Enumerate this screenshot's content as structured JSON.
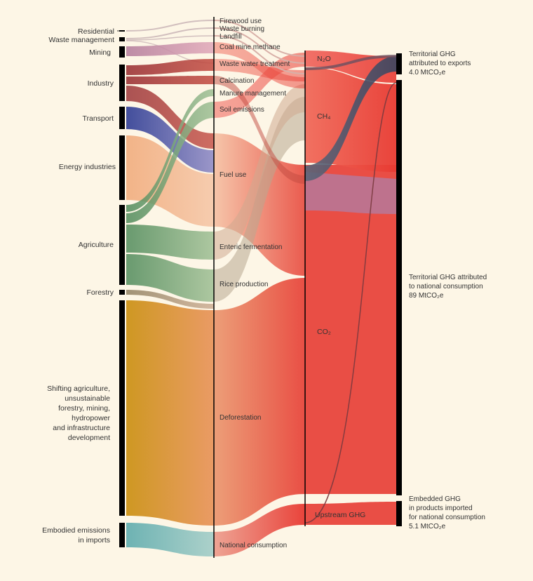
{
  "colors": {
    "background": "#fdf6e6",
    "residential": "#c7b1b4",
    "waste": "#c7b1b4",
    "mining": "#b27a9a",
    "industry": "#962a2e",
    "transport": "#22318f",
    "energy": "#f1ac7d",
    "agriculture": "#4f8a5a",
    "forestry": "#8a7a5a",
    "shifting": "#cc9318",
    "imports": "#66afb0",
    "gas_red": "#e8423b",
    "gas_dark": "#3a4660",
    "bar": "#000000"
  },
  "sources": [
    {
      "key": "residential",
      "label": "Residential"
    },
    {
      "key": "waste",
      "label": "Waste management"
    },
    {
      "key": "mining",
      "label": "Mining"
    },
    {
      "key": "industry",
      "label": "Industry"
    },
    {
      "key": "transport",
      "label": "Transport"
    },
    {
      "key": "energy",
      "label": "Energy industries"
    },
    {
      "key": "agriculture",
      "label": "Agriculture"
    },
    {
      "key": "forestry",
      "label": "Forestry"
    },
    {
      "key": "shifting",
      "label": "Shifting agriculture,\nunsustainable\nforestry, mining,\nhydropower\nand infrastructure\ndevelopment"
    },
    {
      "key": "imports",
      "label": "Embodied emissions\nin imports"
    }
  ],
  "activities": [
    {
      "key": "firewood",
      "label": "Firewood use"
    },
    {
      "key": "wasteburn",
      "label": "Waste burning"
    },
    {
      "key": "landfill",
      "label": "Landfill"
    },
    {
      "key": "coalmine",
      "label": "Coal mine methane"
    },
    {
      "key": "wastewater",
      "label": "Waste water treatment"
    },
    {
      "key": "calcination",
      "label": "Calcination"
    },
    {
      "key": "manure",
      "label": "Manure management"
    },
    {
      "key": "soil",
      "label": "Soil emissions"
    },
    {
      "key": "fueluse",
      "label": "Fuel use"
    },
    {
      "key": "enteric",
      "label": "Enteric fermentation"
    },
    {
      "key": "rice",
      "label": "Rice production"
    },
    {
      "key": "deforest",
      "label": "Deforestation"
    },
    {
      "key": "natcons",
      "label": "National consumption"
    }
  ],
  "gases": [
    {
      "key": "n2o",
      "label": "N₂O"
    },
    {
      "key": "ch4",
      "label": "CH₄"
    },
    {
      "key": "co2",
      "label": "CO₂"
    },
    {
      "key": "upstream",
      "label": "Upstream GHG"
    }
  ],
  "outputs": [
    {
      "key": "exports",
      "lines": [
        "Territorial GHG",
        "attributed to exports",
        "4.0 MtCO₂e"
      ]
    },
    {
      "key": "territorial",
      "lines": [
        "Territorial GHG attributed",
        "to national consumption",
        "89 MtCO₂e"
      ]
    },
    {
      "key": "embedded",
      "lines": [
        "Embedded GHG",
        "in products imported",
        "for national consumption",
        "5.1 MtCO₂e"
      ]
    }
  ]
}
